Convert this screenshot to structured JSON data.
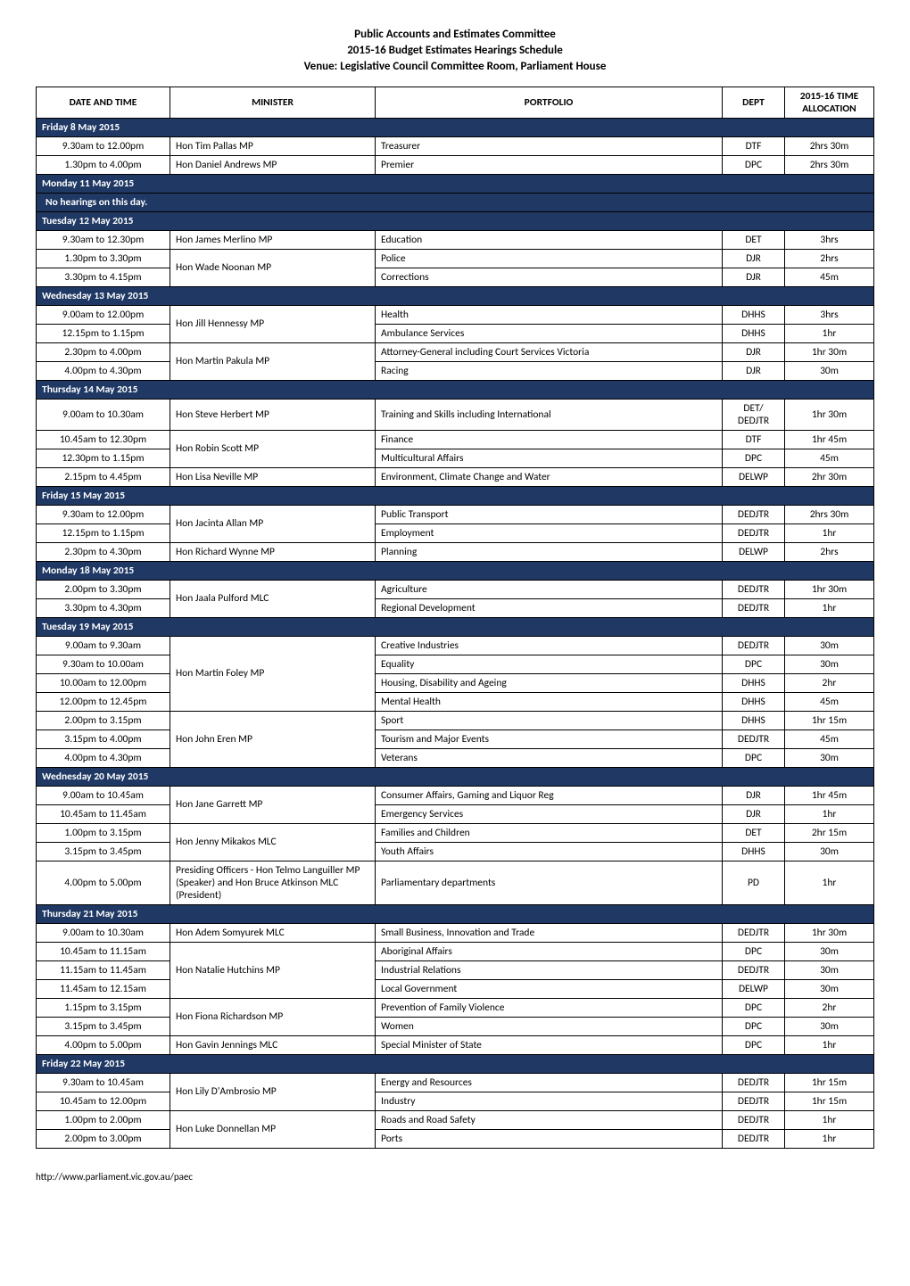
{
  "header": {
    "line1": "Public Accounts and Estimates Committee",
    "line2": "2015-16 Budget Estimates Hearings Schedule",
    "line3": "Venue:  Legislative Council Committee Room, Parliament House"
  },
  "columns": {
    "date": "DATE AND TIME",
    "minister": "MINISTER",
    "portfolio": "PORTFOLIO",
    "dept": "DEPT",
    "alloc": "2015-16 TIME ALLOCATION"
  },
  "colors": {
    "day_header_bg": "#1f3864",
    "day_header_text": "#ffffff",
    "border": "#000000",
    "page_bg": "#ffffff"
  },
  "footer": "http://www.parliament.vic.gov.au/paec",
  "days": [
    {
      "label": "Friday 8 May 2015",
      "rows": [
        {
          "time": "9.30am to 12.00pm",
          "minister": "Hon Tim Pallas MP",
          "portfolio": "Treasurer",
          "dept": "DTF",
          "alloc": "2hrs 30m"
        },
        {
          "time": "1.30pm to 4.00pm",
          "minister": "Hon Daniel Andrews MP",
          "portfolio": "Premier",
          "dept": "DPC",
          "alloc": "2hrs 30m"
        }
      ]
    },
    {
      "label": "Monday 11 May 2015",
      "note": "No hearings on this day.",
      "rows": []
    },
    {
      "label": "Tuesday 12 May 2015",
      "rows": [
        {
          "time": "9.30am to 12.30pm",
          "minister": "Hon James Merlino MP",
          "portfolio": "Education",
          "dept": "DET",
          "alloc": "3hrs"
        },
        {
          "time": "1.30pm to 3.30pm",
          "minister": "Hon Wade Noonan MP",
          "minister_rowspan": 2,
          "portfolio": "Police",
          "dept": "DJR",
          "alloc": "2hrs"
        },
        {
          "time": "3.30pm to 4.15pm",
          "portfolio": "Corrections",
          "dept": "DJR",
          "alloc": "45m"
        }
      ]
    },
    {
      "label": "Wednesday 13 May 2015",
      "rows": [
        {
          "time": "9.00am to 12.00pm",
          "minister": "Hon Jill Hennessy MP",
          "minister_rowspan": 2,
          "portfolio": "Health",
          "dept": "DHHS",
          "alloc": "3hrs"
        },
        {
          "time": "12.15pm to 1.15pm",
          "portfolio": "Ambulance Services",
          "dept": "DHHS",
          "alloc": "1hr"
        },
        {
          "time": "2.30pm to 4.00pm",
          "minister": "Hon Martin Pakula MP",
          "minister_rowspan": 2,
          "portfolio": "Attorney-General including Court Services Victoria",
          "dept": "DJR",
          "alloc": "1hr 30m"
        },
        {
          "time": "4.00pm to 4.30pm",
          "portfolio": "Racing",
          "dept": "DJR",
          "alloc": "30m"
        }
      ]
    },
    {
      "label": "Thursday 14 May 2015",
      "rows": [
        {
          "time": "9.00am to 10.30am",
          "minister": "Hon Steve Herbert MP",
          "portfolio": "Training and Skills including International",
          "dept": "DET/ DEDJTR",
          "alloc": "1hr 30m"
        },
        {
          "time": "10.45am to 12.30pm",
          "minister": "Hon Robin Scott MP",
          "minister_rowspan": 2,
          "portfolio": "Finance",
          "dept": "DTF",
          "alloc": "1hr 45m"
        },
        {
          "time": "12.30pm to 1.15pm",
          "portfolio": "Multicultural Affairs",
          "dept": "DPC",
          "alloc": "45m"
        },
        {
          "time": "2.15pm to 4.45pm",
          "minister": "Hon Lisa Neville MP",
          "portfolio": "Environment, Climate Change and Water",
          "dept": "DELWP",
          "alloc": "2hr 30m"
        }
      ]
    },
    {
      "label": "Friday 15 May 2015",
      "rows": [
        {
          "time": "9.30am to 12.00pm",
          "minister": "Hon Jacinta Allan MP",
          "minister_rowspan": 2,
          "portfolio": "Public Transport",
          "dept": "DEDJTR",
          "alloc": "2hrs 30m"
        },
        {
          "time": "12.15pm to 1.15pm",
          "portfolio": "Employment",
          "dept": "DEDJTR",
          "alloc": "1hr"
        },
        {
          "time": "2.30pm to 4.30pm",
          "minister": "Hon Richard Wynne MP",
          "portfolio": "Planning",
          "dept": "DELWP",
          "alloc": "2hrs"
        }
      ]
    },
    {
      "label": "Monday 18 May 2015",
      "rows": [
        {
          "time": "2.00pm to 3.30pm",
          "minister": "Hon Jaala Pulford MLC",
          "minister_rowspan": 2,
          "portfolio": "Agriculture",
          "dept": "DEDJTR",
          "alloc": "1hr 30m"
        },
        {
          "time": "3.30pm to 4.30pm",
          "portfolio": "Regional Development",
          "dept": "DEDJTR",
          "alloc": "1hr"
        }
      ]
    },
    {
      "label": "Tuesday 19 May 2015",
      "rows": [
        {
          "time": "9.00am to 9.30am",
          "minister": "Hon Martin Foley MP",
          "minister_rowspan": 4,
          "portfolio": "Creative Industries",
          "dept": "DEDJTR",
          "alloc": "30m"
        },
        {
          "time": "9.30am to 10.00am",
          "portfolio": "Equality",
          "dept": "DPC",
          "alloc": "30m"
        },
        {
          "time": "10.00am to 12.00pm",
          "portfolio": "Housing, Disability and Ageing",
          "dept": "DHHS",
          "alloc": "2hr"
        },
        {
          "time": "12.00pm to 12.45pm",
          "portfolio": "Mental Health",
          "dept": "DHHS",
          "alloc": "45m"
        },
        {
          "time": "2.00pm to 3.15pm",
          "minister": "Hon John Eren MP",
          "minister_rowspan": 3,
          "portfolio": "Sport",
          "dept": "DHHS",
          "alloc": "1hr 15m"
        },
        {
          "time": "3.15pm to 4.00pm",
          "portfolio": "Tourism and Major Events",
          "dept": "DEDJTR",
          "alloc": "45m"
        },
        {
          "time": "4.00pm to 4.30pm",
          "portfolio": "Veterans",
          "dept": "DPC",
          "alloc": "30m"
        }
      ]
    },
    {
      "label": "Wednesday 20 May 2015",
      "rows": [
        {
          "time": "9.00am to 10.45am",
          "minister": "Hon Jane Garrett MP",
          "minister_rowspan": 2,
          "portfolio": "Consumer Affairs, Gaming and Liquor Reg",
          "dept": "DJR",
          "alloc": "1hr 45m"
        },
        {
          "time": "10.45am to 11.45am",
          "portfolio": "Emergency Services",
          "dept": "DJR",
          "alloc": "1hr"
        },
        {
          "time": "1.00pm to 3.15pm",
          "minister": "Hon Jenny Mikakos MLC",
          "minister_rowspan": 2,
          "portfolio": "Families and Children",
          "dept": "DET",
          "alloc": "2hr 15m"
        },
        {
          "time": "3.15pm to 3.45pm",
          "portfolio": "Youth Affairs",
          "dept": "DHHS",
          "alloc": "30m"
        },
        {
          "time": "4.00pm to 5.00pm",
          "minister": "Presiding Officers - Hon Telmo Languiller MP (Speaker) and Hon Bruce Atkinson MLC (President)",
          "portfolio": "Parliamentary departments",
          "dept": "PD",
          "alloc": "1hr"
        }
      ]
    },
    {
      "label": "Thursday 21 May 2015",
      "rows": [
        {
          "time": "9.00am to 10.30am",
          "minister": "Hon Adem Somyurek MLC",
          "portfolio": "Small Business, Innovation and Trade",
          "dept": "DEDJTR",
          "alloc": "1hr 30m"
        },
        {
          "time": "10.45am to 11.15am",
          "minister": "Hon Natalie Hutchins MP",
          "minister_rowspan": 3,
          "portfolio": "Aboriginal Affairs",
          "dept": "DPC",
          "alloc": "30m"
        },
        {
          "time": "11.15am to 11.45am",
          "portfolio": "Industrial Relations",
          "dept": "DEDJTR",
          "alloc": "30m"
        },
        {
          "time": "11.45am to 12.15am",
          "portfolio": "Local Government",
          "dept": "DELWP",
          "alloc": "30m"
        },
        {
          "time": "1.15pm to 3.15pm",
          "minister": "Hon Fiona Richardson MP",
          "minister_rowspan": 2,
          "portfolio": "Prevention of Family Violence",
          "dept": "DPC",
          "alloc": "2hr"
        },
        {
          "time": "3.15pm to 3.45pm",
          "portfolio": "Women",
          "dept": "DPC",
          "alloc": "30m"
        },
        {
          "time": "4.00pm to 5.00pm",
          "minister": "Hon Gavin Jennings MLC",
          "portfolio": "Special Minister of State",
          "dept": "DPC",
          "alloc": "1hr"
        }
      ]
    },
    {
      "label": "Friday 22 May 2015",
      "rows": [
        {
          "time": "9.30am to 10.45am",
          "minister": "Hon Lily D'Ambrosio MP",
          "minister_rowspan": 2,
          "portfolio": "Energy and Resources",
          "dept": "DEDJTR",
          "alloc": "1hr 15m"
        },
        {
          "time": "10.45am to 12.00pm",
          "portfolio": "Industry",
          "dept": "DEDJTR",
          "alloc": "1hr 15m"
        },
        {
          "time": "1.00pm to 2.00pm",
          "minister": "Hon Luke Donnellan MP",
          "minister_rowspan": 2,
          "portfolio": "Roads and Road Safety",
          "dept": "DEDJTR",
          "alloc": "1hr"
        },
        {
          "time": "2.00pm to 3.00pm",
          "portfolio": "Ports",
          "dept": "DEDJTR",
          "alloc": "1hr"
        }
      ]
    }
  ]
}
